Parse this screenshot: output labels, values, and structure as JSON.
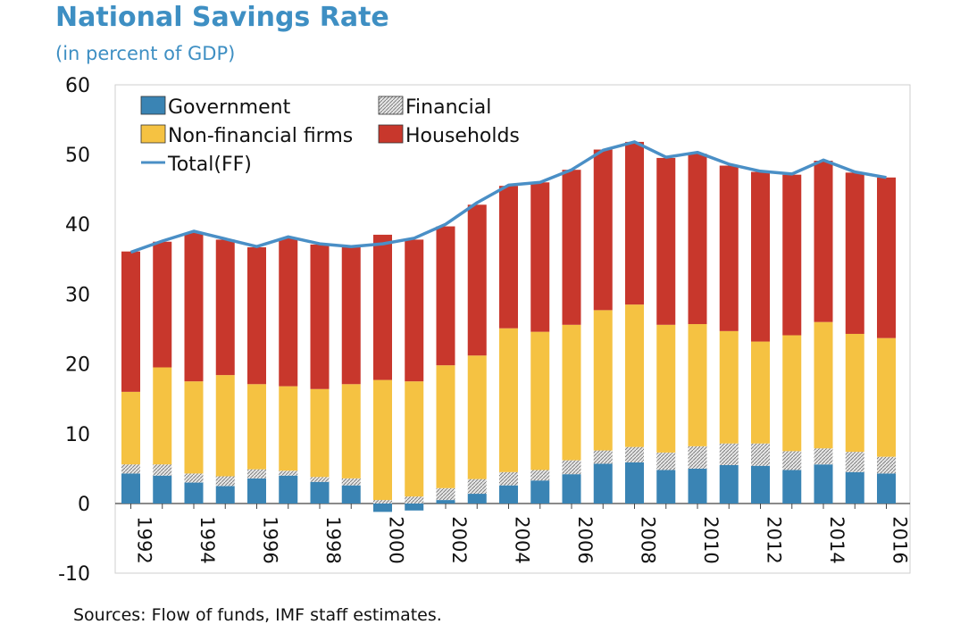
{
  "title": "National Savings Rate",
  "subtitle": "(in percent of GDP)",
  "source": "Sources: Flow of funds, IMF staff estimates.",
  "colors": {
    "government": "#3a84b4",
    "financial": "#d9d9d9",
    "nonfinancial": "#f5c242",
    "households": "#c8372c",
    "total": "#4a8fc6"
  },
  "chart_data": {
    "type": "bar",
    "stacked": true,
    "ylim": [
      -10,
      60
    ],
    "yticks": [
      -10,
      0,
      10,
      20,
      30,
      40,
      50,
      60
    ],
    "categories": [
      "1992",
      "1993",
      "1994",
      "1995",
      "1996",
      "1997",
      "1998",
      "1999",
      "2000",
      "2001",
      "2002",
      "2003",
      "2004",
      "2005",
      "2006",
      "2007",
      "2008",
      "2009",
      "2010",
      "2011",
      "2012",
      "2013",
      "2014",
      "2015",
      "2016"
    ],
    "x_tick_labels": [
      "1992",
      "",
      "1994",
      "",
      "1996",
      "",
      "1998",
      "",
      "2000",
      "",
      "2002",
      "",
      "2004",
      "",
      "2006",
      "",
      "2008",
      "",
      "2010",
      "",
      "2012",
      "",
      "2014",
      "",
      "2016"
    ],
    "series": [
      {
        "name": "Government",
        "key": "government",
        "kind": "bar",
        "values": [
          4.3,
          4.0,
          3.0,
          2.5,
          3.6,
          4.0,
          3.1,
          2.6,
          -1.2,
          -1.0,
          0.5,
          1.4,
          2.6,
          3.3,
          4.2,
          5.7,
          5.9,
          4.8,
          5.0,
          5.5,
          5.4,
          4.8,
          5.6,
          4.5,
          4.3
        ]
      },
      {
        "name": "Financial",
        "key": "financial",
        "kind": "bar",
        "pattern": "hatched",
        "values": [
          1.3,
          1.6,
          1.3,
          1.4,
          1.3,
          0.7,
          0.7,
          1.0,
          0.5,
          1.0,
          1.7,
          2.1,
          1.9,
          1.5,
          2.0,
          1.9,
          2.2,
          2.5,
          3.2,
          3.1,
          3.2,
          2.7,
          2.3,
          2.9,
          2.4
        ]
      },
      {
        "name": "Non-financial firms",
        "key": "nonfinancial",
        "kind": "bar",
        "values": [
          10.4,
          13.9,
          13.2,
          14.5,
          12.2,
          12.1,
          12.6,
          13.5,
          17.2,
          16.5,
          17.6,
          17.7,
          20.6,
          19.8,
          19.4,
          20.1,
          20.4,
          18.3,
          17.5,
          16.1,
          14.6,
          16.6,
          18.1,
          16.9,
          17.0
        ]
      },
      {
        "name": "Households",
        "key": "households",
        "kind": "bar",
        "values": [
          20.1,
          18.0,
          21.3,
          19.4,
          19.6,
          21.2,
          20.7,
          19.6,
          20.8,
          20.3,
          19.9,
          21.6,
          20.4,
          21.4,
          22.2,
          23.0,
          23.3,
          23.9,
          24.4,
          23.7,
          24.3,
          23.0,
          23.1,
          23.1,
          23.0
        ]
      },
      {
        "name": "Total(FF)",
        "key": "total",
        "kind": "line",
        "values": [
          36.0,
          37.6,
          39.0,
          37.9,
          36.8,
          38.2,
          37.2,
          36.8,
          37.2,
          38.0,
          40.0,
          43.1,
          45.6,
          46.0,
          47.8,
          50.6,
          51.8,
          49.6,
          50.3,
          48.6,
          47.6,
          47.2,
          49.2,
          47.5,
          46.7
        ]
      }
    ],
    "legend": {
      "placement": "top-left",
      "items": [
        "Government",
        "Financial",
        "Non-financial firms",
        "Households",
        "Total(FF)"
      ]
    },
    "grid": false,
    "xlabel": "",
    "ylabel": ""
  }
}
